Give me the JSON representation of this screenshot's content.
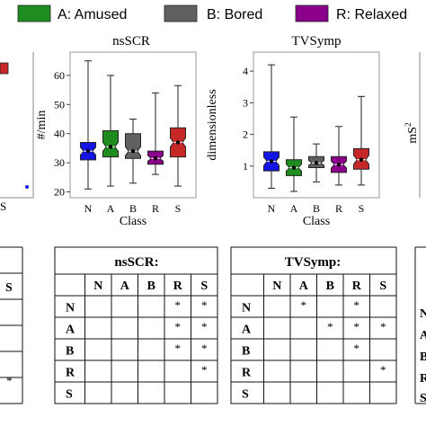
{
  "legend": {
    "entries": [
      {
        "label": "A: Amused",
        "color": "#1e8c1e"
      },
      {
        "label": "B: Bored",
        "color": "#606060"
      },
      {
        "label": "R: Relaxed",
        "color": "#8b008b"
      }
    ]
  },
  "colors": {
    "N": "#1414e6",
    "A": "#1e8c1e",
    "B": "#606060",
    "R": "#8b008b",
    "S": "#c62828"
  },
  "chart_data": [
    {
      "type": "box",
      "title": "nsSCR",
      "ylabel": "#/min",
      "xlabel": "Class",
      "categories": [
        "N",
        "A",
        "B",
        "R",
        "S"
      ],
      "ylim": [
        18,
        68
      ],
      "yticks": [
        20,
        30,
        40,
        50,
        60
      ],
      "series": [
        {
          "category": "N",
          "min": 21,
          "q1": 31,
          "median": 34,
          "mean": 34,
          "q3": 37,
          "max": 65
        },
        {
          "category": "A",
          "min": 22,
          "q1": 32,
          "median": 35.5,
          "mean": 35.5,
          "q3": 41,
          "max": 60
        },
        {
          "category": "B",
          "min": 23,
          "q1": 31.5,
          "median": 34,
          "mean": 34,
          "q3": 40,
          "max": 45
        },
        {
          "category": "R",
          "min": 26,
          "q1": 29.5,
          "median": 31.5,
          "mean": 31.5,
          "q3": 34,
          "max": 54
        },
        {
          "category": "S",
          "min": 22,
          "q1": 32,
          "median": 37,
          "mean": 37,
          "q3": 42,
          "max": 56.5
        }
      ]
    },
    {
      "type": "box",
      "title": "TVSymp",
      "ylabel": "dimensionless",
      "xlabel": "Class",
      "categories": [
        "N",
        "A",
        "B",
        "R",
        "S"
      ],
      "ylim": [
        0,
        4.6
      ],
      "yticks": [
        1,
        2,
        3,
        4
      ],
      "series": [
        {
          "category": "N",
          "min": 0.3,
          "q1": 0.85,
          "median": 1.15,
          "mean": 1.15,
          "q3": 1.45,
          "max": 4.2
        },
        {
          "category": "A",
          "min": 0.2,
          "q1": 0.7,
          "median": 0.95,
          "mean": 0.95,
          "q3": 1.2,
          "max": 2.55
        },
        {
          "category": "B",
          "min": 0.5,
          "q1": 0.95,
          "median": 1.1,
          "mean": 1.1,
          "q3": 1.3,
          "max": 1.7
        },
        {
          "category": "R",
          "min": 0.4,
          "q1": 0.8,
          "median": 1.05,
          "mean": 1.05,
          "q3": 1.3,
          "max": 2.25
        },
        {
          "category": "S",
          "min": 0.4,
          "q1": 0.9,
          "median": 1.2,
          "mean": 1.2,
          "q3": 1.55,
          "max": 3.2
        }
      ]
    },
    {
      "type": "table",
      "title": "nsSCR:",
      "columns": [
        "N",
        "A",
        "B",
        "R",
        "S"
      ],
      "rows": [
        "N",
        "A",
        "B",
        "R",
        "S"
      ],
      "cells": [
        [
          "",
          "",
          "",
          "*",
          "*"
        ],
        [
          "",
          "",
          "",
          "*",
          "*"
        ],
        [
          "",
          "",
          "",
          "*",
          "*"
        ],
        [
          "",
          "",
          "",
          "",
          "*"
        ],
        [
          "",
          "",
          "",
          "",
          ""
        ]
      ]
    },
    {
      "type": "table",
      "title": "TVSymp:",
      "columns": [
        "N",
        "A",
        "B",
        "R",
        "S"
      ],
      "rows": [
        "N",
        "A",
        "B",
        "R",
        "S"
      ],
      "cells": [
        [
          "",
          "*",
          "",
          "*",
          ""
        ],
        [
          "",
          "",
          "*",
          "*",
          "*"
        ],
        [
          "",
          "",
          "",
          "*",
          ""
        ],
        [
          "",
          "",
          "",
          "",
          "*"
        ],
        [
          "",
          "",
          "",
          "",
          ""
        ]
      ]
    }
  ],
  "left_partial": {
    "cells": [
      {
        "row": 1,
        "text": "S"
      },
      {
        "row": 4,
        "text": "*"
      }
    ]
  },
  "right_partial": {
    "ylabel": "mS",
    "ylabel_sup": "2",
    "row_letters": [
      "N",
      "A",
      "B",
      "R",
      "S"
    ]
  }
}
